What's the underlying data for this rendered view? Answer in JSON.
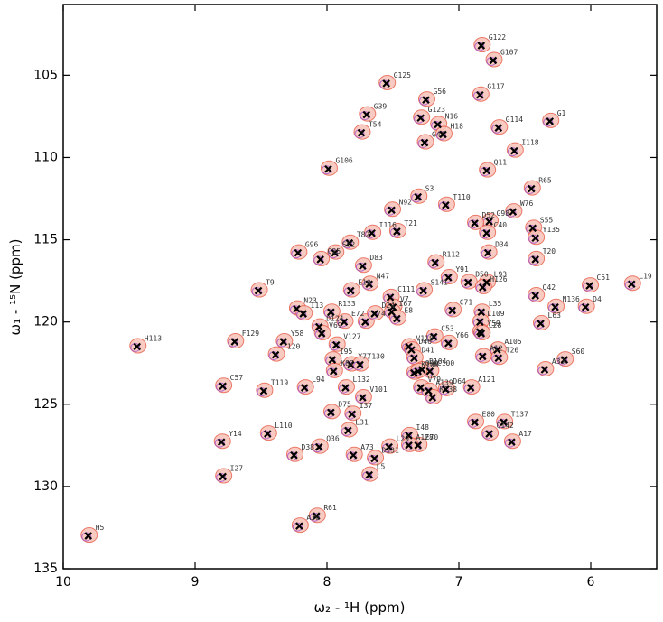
{
  "chart_data": {
    "type": "scatter",
    "xlabel": "ω₂ - ¹H (ppm)",
    "ylabel": "ω₁ - ¹⁵N (ppm)",
    "xlim": [
      10,
      5.5
    ],
    "ylim": [
      135,
      100.7
    ],
    "xticks": [
      10,
      9,
      8,
      7,
      6
    ],
    "yticks": [
      105,
      110,
      115,
      120,
      125,
      130,
      135
    ],
    "color": "#000000",
    "contour_colors": [
      "#e8604c",
      "#a050d0"
    ],
    "labels": [
      "G122",
      "G107",
      "G125",
      "G56",
      "G117",
      "G39",
      "G123",
      "N16",
      "G1",
      "G114",
      "T54",
      "G44",
      "H18",
      "I118",
      "G106",
      "Q11",
      "R65",
      "N92",
      "S3",
      "T110",
      "G98",
      "W76",
      "T21",
      "I116",
      "D52",
      "C40",
      "S55",
      "Y135",
      "T82",
      "G96",
      "S62",
      "D34",
      "Q25",
      "D83",
      "R112",
      "Y91",
      "T20",
      "D50",
      "L93",
      "H126",
      "C51",
      "L19",
      "T9",
      "N47",
      "E10",
      "S141",
      "C111",
      "Q42",
      "N23",
      "R133",
      "V7",
      "I67",
      "C71",
      "N136",
      "D4",
      "E72",
      "H74",
      "E8",
      "I13",
      "D24",
      "L35",
      "L109",
      "Y59",
      "L63",
      "D124",
      "V69",
      "F129",
      "Y58",
      "C53",
      "Y66",
      "L28",
      "V127",
      "V118",
      "A105",
      "H113",
      "T120",
      "D46",
      "D41",
      "A12",
      "T26",
      "S60",
      "I95",
      "Y77",
      "T130",
      "D104",
      "C100",
      "K87",
      "K108",
      "Q90",
      "A33",
      "C57",
      "T119",
      "L94",
      "L132",
      "V79",
      "A121",
      "V101",
      "A139",
      "K138",
      "D64",
      "I37",
      "D75",
      "E80",
      "T137",
      "L110",
      "Q142",
      "I48",
      "E70",
      "A17",
      "Y14",
      "L31",
      "D38",
      "Q36",
      "L29",
      "A128",
      "A73",
      "D131",
      "L5",
      "I27",
      "R61",
      "A30",
      "H5"
    ],
    "x": [
      6.83,
      6.74,
      7.55,
      7.25,
      6.84,
      7.7,
      7.29,
      7.16,
      6.31,
      6.7,
      7.74,
      7.26,
      7.12,
      6.58,
      7.99,
      6.79,
      6.45,
      7.51,
      7.31,
      7.1,
      6.77,
      6.59,
      7.47,
      7.66,
      6.88,
      6.79,
      6.44,
      6.42,
      7.83,
      8.22,
      7.94,
      6.78,
      8.05,
      7.73,
      7.18,
      7.08,
      6.42,
      6.93,
      6.79,
      6.82,
      6.01,
      5.69,
      8.52,
      7.68,
      7.82,
      7.27,
      7.52,
      6.42,
      8.23,
      7.97,
      7.5,
      7.51,
      7.05,
      6.27,
      6.04,
      7.87,
      7.71,
      7.47,
      8.18,
      7.64,
      6.83,
      6.84,
      6.84,
      6.38,
      8.06,
      8.04,
      8.7,
      8.33,
      7.19,
      7.08,
      6.83,
      7.93,
      7.38,
      6.71,
      9.44,
      8.39,
      7.36,
      7.34,
      6.82,
      6.7,
      6.2,
      7.96,
      7.82,
      7.75,
      7.28,
      7.22,
      7.95,
      7.34,
      7.31,
      6.35,
      8.79,
      8.48,
      8.17,
      7.86,
      7.29,
      6.91,
      7.73,
      7.23,
      7.2,
      7.1,
      7.81,
      7.97,
      6.88,
      6.66,
      8.45,
      6.77,
      7.38,
      7.31,
      6.6,
      8.8,
      7.84,
      8.25,
      8.06,
      7.53,
      7.38,
      7.8,
      7.64,
      7.68,
      8.79,
      8.08,
      8.21,
      9.81
    ],
    "values": [
      103.2,
      104.1,
      105.5,
      106.5,
      106.2,
      107.4,
      107.6,
      108.0,
      107.8,
      108.2,
      108.5,
      109.1,
      108.6,
      109.6,
      110.7,
      110.8,
      111.9,
      113.2,
      112.4,
      112.9,
      113.9,
      113.3,
      114.5,
      114.6,
      114.0,
      114.6,
      114.3,
      114.9,
      115.2,
      115.8,
      115.8,
      115.8,
      116.2,
      116.6,
      116.4,
      117.3,
      116.2,
      117.6,
      117.6,
      117.9,
      117.8,
      117.7,
      118.1,
      117.7,
      118.1,
      118.1,
      118.5,
      118.4,
      119.2,
      119.4,
      119.1,
      119.4,
      119.3,
      119.1,
      119.1,
      120.0,
      120.0,
      119.8,
      119.5,
      119.5,
      119.4,
      120.0,
      120.6,
      120.1,
      120.3,
      120.7,
      121.2,
      121.2,
      120.9,
      121.3,
      120.7,
      121.4,
      121.5,
      121.7,
      121.5,
      122.0,
      121.7,
      122.2,
      122.1,
      122.2,
      122.3,
      122.3,
      122.6,
      122.6,
      122.9,
      123.0,
      123.0,
      123.1,
      123.0,
      122.9,
      123.9,
      124.2,
      124.0,
      124.0,
      124.0,
      124.0,
      124.6,
      124.2,
      124.6,
      124.1,
      125.6,
      125.5,
      126.1,
      126.1,
      126.8,
      126.8,
      126.9,
      127.5,
      127.3,
      127.3,
      126.6,
      128.1,
      127.6,
      127.6,
      127.5,
      128.1,
      128.3,
      129.3,
      129.4,
      131.8,
      132.4,
      133.0
    ]
  }
}
